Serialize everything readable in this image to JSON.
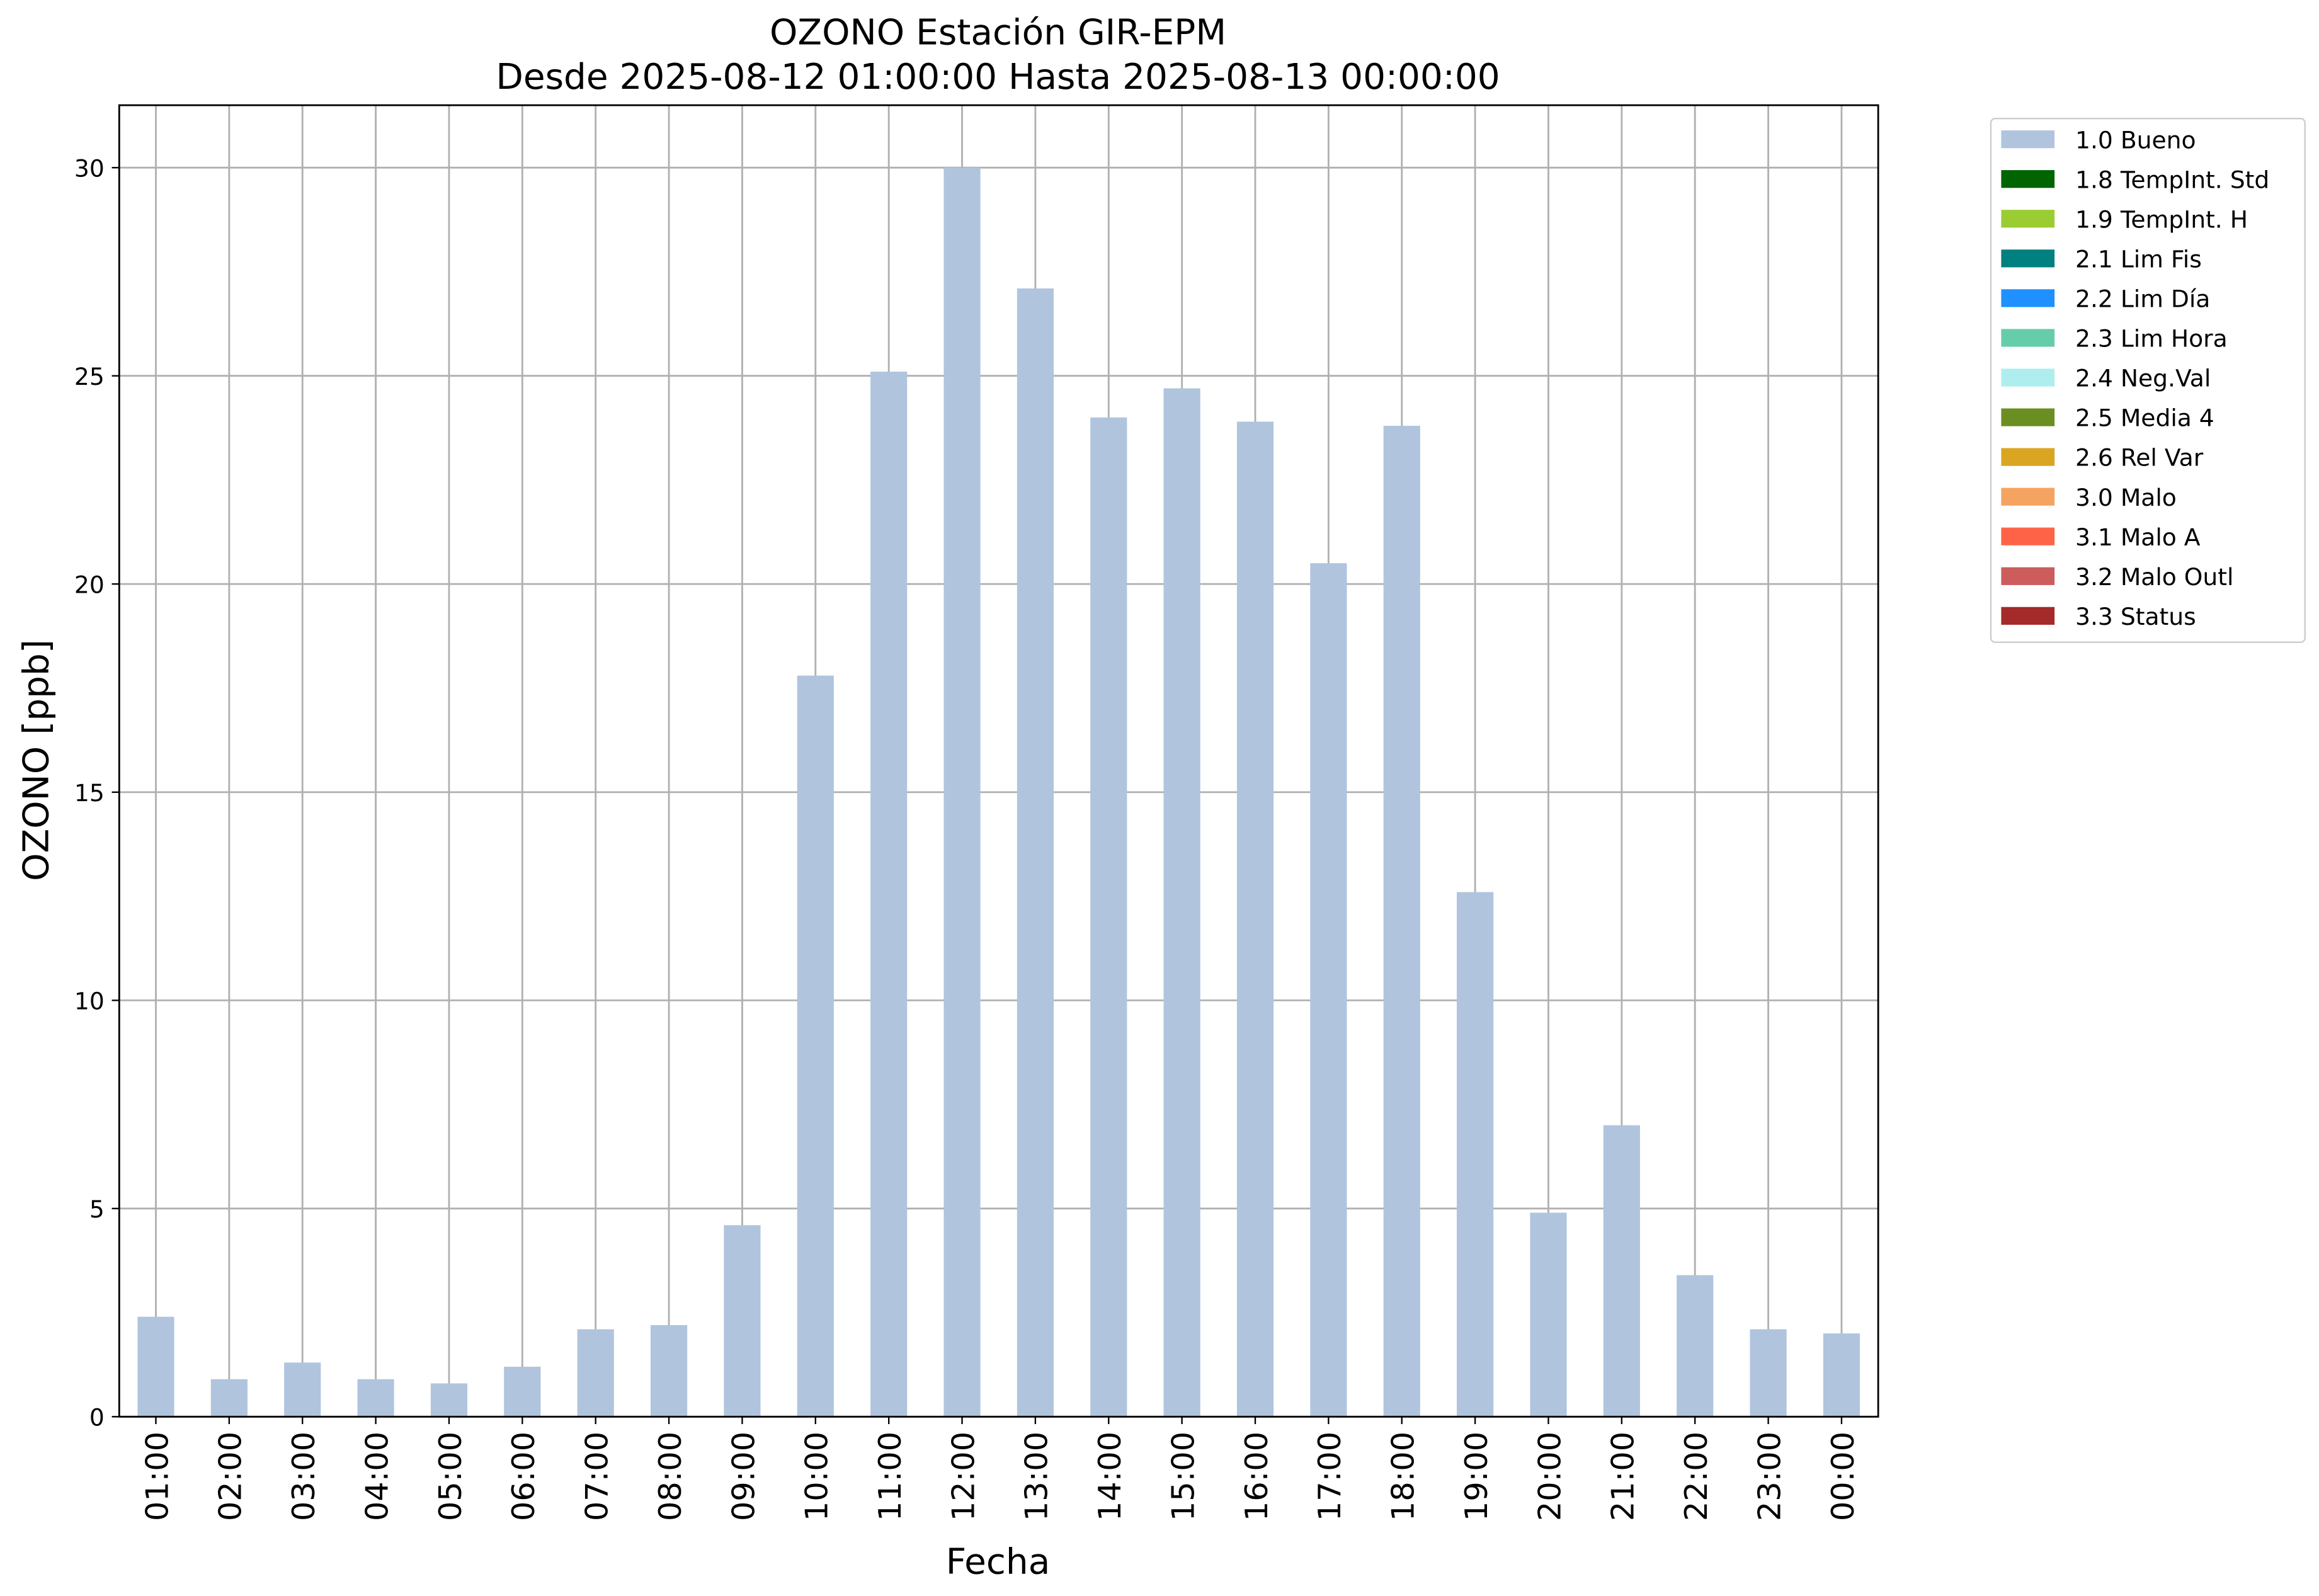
{
  "chart_data": {
    "type": "stacked_bar",
    "title": "OZONO Estación GIR-EPM",
    "subtitle": "Desde 2025-08-12 01:00:00 Hasta 2025-08-13 00:00:00",
    "x_label": "Fecha",
    "y_label": "OZONO [ppb]",
    "categories": [
      "01:00",
      "02:00",
      "03:00",
      "04:00",
      "05:00",
      "06:00",
      "07:00",
      "08:00",
      "09:00",
      "10:00",
      "11:00",
      "12:00",
      "13:00",
      "14:00",
      "15:00",
      "16:00",
      "17:00",
      "18:00",
      "19:00",
      "20:00",
      "21:00",
      "22:00",
      "23:00",
      "00:00"
    ],
    "series": [
      {
        "name": "1.0 Bueno",
        "color": "#b0c4de",
        "values": [
          2.4,
          0.9,
          1.3,
          0.9,
          0.8,
          1.2,
          2.1,
          2.2,
          4.6,
          17.8,
          25.1,
          30.0,
          27.1,
          24.0,
          24.7,
          23.9,
          20.5,
          23.8,
          12.6,
          4.9,
          7.0,
          3.4,
          2.1,
          2.0
        ]
      },
      {
        "name": "1.8 TempInt. Std",
        "color": "#006400",
        "values": [
          0,
          0,
          0,
          0,
          0,
          0,
          0,
          0,
          0,
          0,
          0,
          0,
          0,
          0,
          0,
          0,
          0,
          0,
          0,
          0,
          0,
          0,
          0,
          0
        ]
      },
      {
        "name": "1.9 TempInt. H",
        "color": "#9acd32",
        "values": [
          0,
          0,
          0,
          0,
          0,
          0,
          0,
          0,
          0,
          0,
          0,
          0,
          0,
          0,
          0,
          0,
          0,
          0,
          0,
          0,
          0,
          0,
          0,
          0
        ]
      },
      {
        "name": "2.1 Lim Fis",
        "color": "#008080",
        "values": [
          0,
          0,
          0,
          0,
          0,
          0,
          0,
          0,
          0,
          0,
          0,
          0,
          0,
          0,
          0,
          0,
          0,
          0,
          0,
          0,
          0,
          0,
          0,
          0
        ]
      },
      {
        "name": "2.2 Lim Día",
        "color": "#1e90ff",
        "values": [
          0,
          0,
          0,
          0,
          0,
          0,
          0,
          0,
          0,
          0,
          0,
          0,
          0,
          0,
          0,
          0,
          0,
          0,
          0,
          0,
          0,
          0,
          0,
          0
        ]
      },
      {
        "name": "2.3 Lim Hora",
        "color": "#66cdaa",
        "values": [
          0,
          0,
          0,
          0,
          0,
          0,
          0,
          0,
          0,
          0,
          0,
          0,
          0,
          0,
          0,
          0,
          0,
          0,
          0,
          0,
          0,
          0,
          0,
          0
        ]
      },
      {
        "name": "2.4 Neg.Val",
        "color": "#afeeee",
        "values": [
          0,
          0,
          0,
          0,
          0,
          0,
          0,
          0,
          0,
          0,
          0,
          0,
          0,
          0,
          0,
          0,
          0,
          0,
          0,
          0,
          0,
          0,
          0,
          0
        ]
      },
      {
        "name": "2.5 Media 4",
        "color": "#6b8e23",
        "values": [
          0,
          0,
          0,
          0,
          0,
          0,
          0,
          0,
          0,
          0,
          0,
          0,
          0,
          0,
          0,
          0,
          0,
          0,
          0,
          0,
          0,
          0,
          0,
          0
        ]
      },
      {
        "name": "2.6 Rel Var",
        "color": "#daa520",
        "values": [
          0,
          0,
          0,
          0,
          0,
          0,
          0,
          0,
          0,
          0,
          0,
          0,
          0,
          0,
          0,
          0,
          0,
          0,
          0,
          0,
          0,
          0,
          0,
          0
        ]
      },
      {
        "name": "3.0 Malo",
        "color": "#f4a460",
        "values": [
          0,
          0,
          0,
          0,
          0,
          0,
          0,
          0,
          0,
          0,
          0,
          0,
          0,
          0,
          0,
          0,
          0,
          0,
          0,
          0,
          0,
          0,
          0,
          0
        ]
      },
      {
        "name": "3.1 Malo A",
        "color": "#ff6347",
        "values": [
          0,
          0,
          0,
          0,
          0,
          0,
          0,
          0,
          0,
          0,
          0,
          0,
          0,
          0,
          0,
          0,
          0,
          0,
          0,
          0,
          0,
          0,
          0,
          0
        ]
      },
      {
        "name": "3.2 Malo Outl",
        "color": "#cd5c5c",
        "values": [
          0,
          0,
          0,
          0,
          0,
          0,
          0,
          0,
          0,
          0,
          0,
          0,
          0,
          0,
          0,
          0,
          0,
          0,
          0,
          0,
          0,
          0,
          0,
          0
        ]
      },
      {
        "name": "3.3 Status",
        "color": "#a52a2a",
        "values": [
          0,
          0,
          0,
          0,
          0,
          0,
          0,
          0,
          0,
          0,
          0,
          0,
          0,
          0,
          0,
          0,
          0,
          0,
          0,
          0,
          0,
          0,
          0,
          0
        ]
      }
    ],
    "ylim": [
      0,
      31.5
    ],
    "yticks": [
      0,
      5,
      10,
      15,
      20,
      25,
      30
    ],
    "grid": true,
    "legend": "outside upper right"
  }
}
